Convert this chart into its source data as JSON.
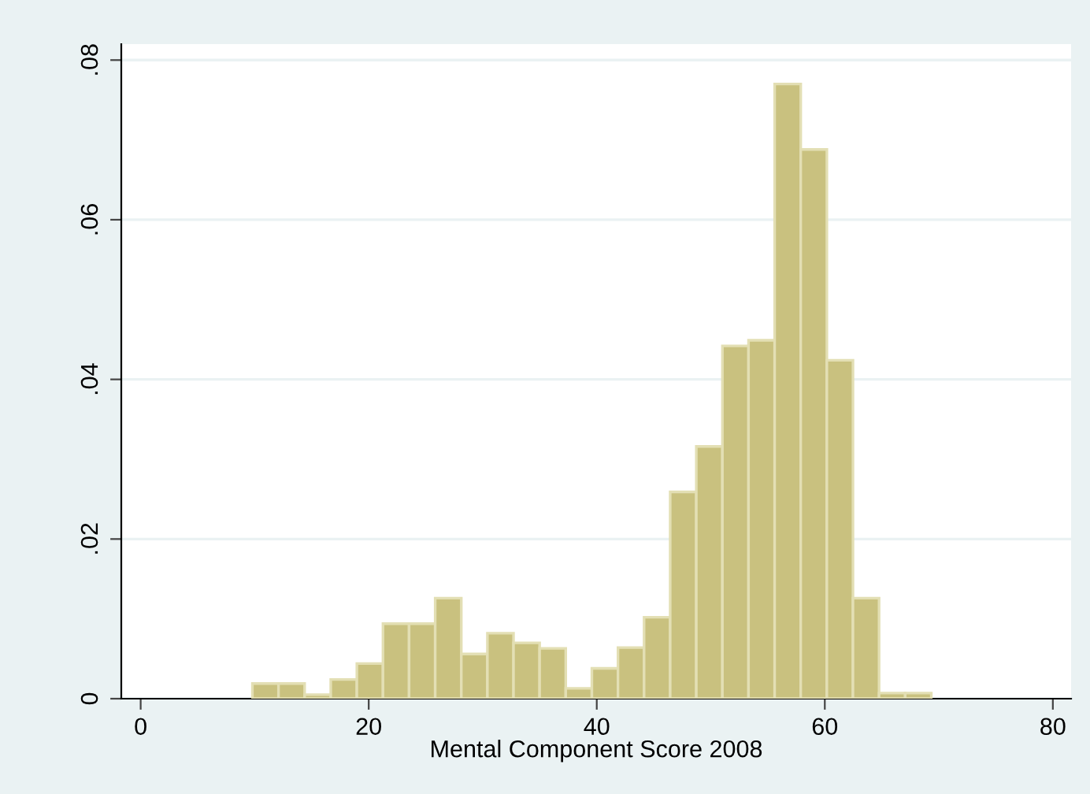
{
  "chart_data": {
    "type": "histogram",
    "xlabel": "Mental Component Score 2008",
    "bins": [
      9.8,
      12.09,
      14.38,
      16.67,
      18.96,
      21.25,
      23.54,
      25.83,
      28.12,
      30.41,
      32.7,
      34.99,
      37.28,
      39.57,
      41.86,
      44.15,
      46.44,
      48.73,
      51.02,
      53.31,
      55.6,
      57.89,
      60.18,
      62.47,
      64.76,
      67.05,
      69.34
    ],
    "values": [
      0.0019,
      0.0019,
      0.0005,
      0.0024,
      0.0044,
      0.0094,
      0.0094,
      0.0126,
      0.0056,
      0.0082,
      0.007,
      0.0063,
      0.0013,
      0.0038,
      0.0064,
      0.0102,
      0.0259,
      0.0316,
      0.0442,
      0.0449,
      0.077,
      0.0688,
      0.0424,
      0.0126,
      0.0007,
      0.0007
    ],
    "color": "#c9c17f",
    "xlim": [
      -1.7,
      81.6
    ],
    "ylim": [
      0,
      0.082
    ],
    "xticks": [
      0,
      20,
      40,
      60,
      80
    ],
    "yticks": [
      0,
      {
        "value": 0.02,
        "label": ".02"
      },
      {
        "value": 0.04,
        "label": ".04"
      },
      {
        "value": 0.06,
        "label": ".06"
      },
      {
        "value": 0.08,
        "label": ".08"
      }
    ],
    "grid": "y"
  }
}
